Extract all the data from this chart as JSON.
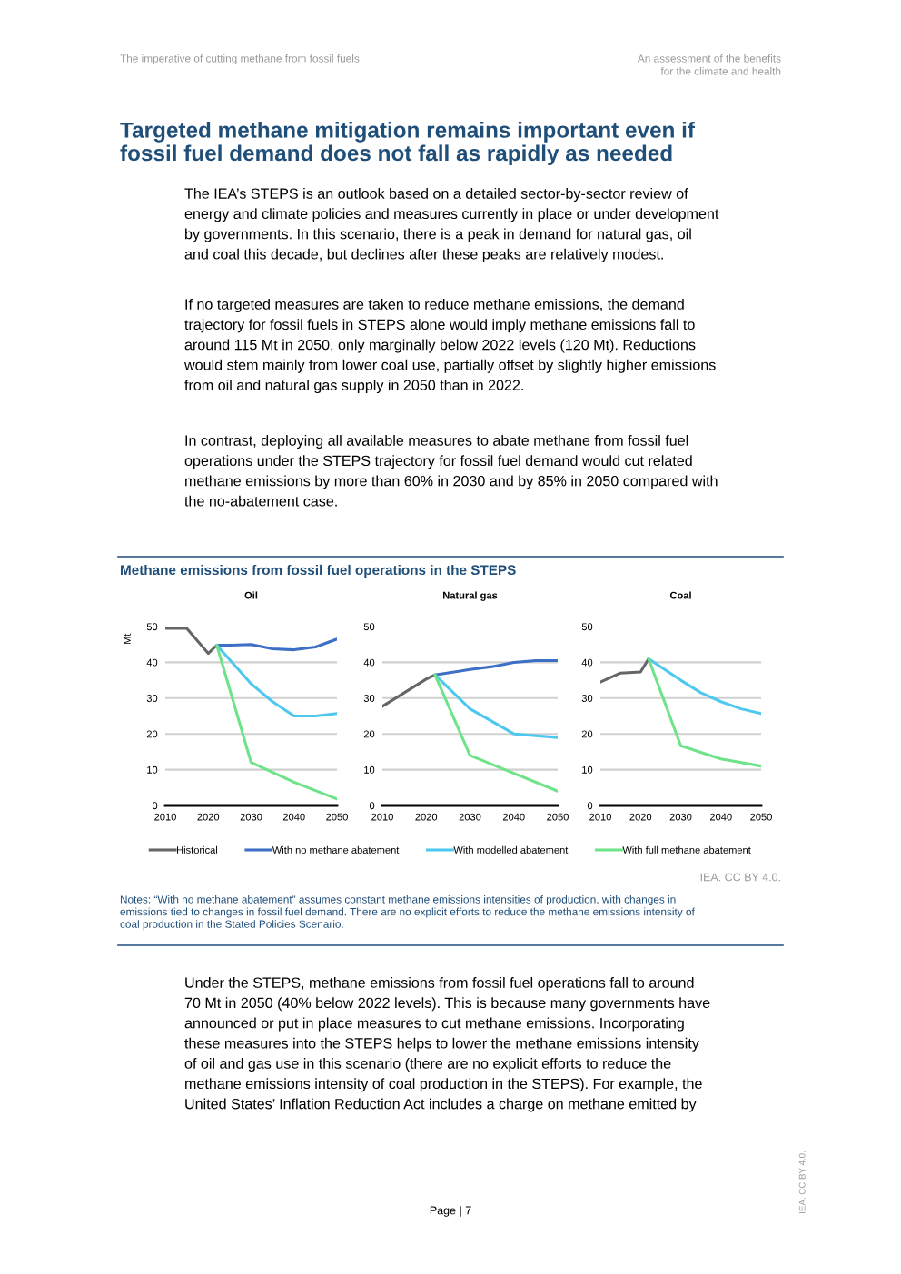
{
  "chart_data": [
    {
      "type": "other",
      "title": "Targeted methane mitigation remains important even if\nfossil fuel demand does not fall as rapidly as needed",
      "subtitle": "Methane emissions from fossil fuel operations in the STEPS",
      "annotations": [
        "The imperative of cutting methane from fossil fuels",
        "An assessment of the benefits\nfor the climate and health",
        "The IEA’s STEPS is an outlook based on a detailed sector-by-sector review of\nenergy and climate policies and measures currently in place or under development\nby governments. In this scenario, there is a peak in demand for natural gas, oil\nand coal this decade, but declines after these peaks are relatively modest.",
        "If no targeted measures are taken to reduce methane emissions, the demand\ntrajectory for fossil fuels in STEPS alone would imply methane emissions fall to\naround 115 Mt in 2050, only marginally below 2022 levels (120 Mt). Reductions\nwould stem mainly from lower coal use, partially offset by slightly higher emissions\nfrom oil and natural gas supply in 2050 than in 2022.",
        "In contrast, deploying all available measures to abate methane from fossil fuel\noperations under the STEPS trajectory for fossil fuel demand would cut related\nmethane emissions by more than 60% in 2030 and by 85% in 2050 compared with\nthe no-abatement case.",
        "IEA. CC BY 4.0.",
        "Notes: “With no methane abatement” assumes constant methane emissions intensities of production, with changes in\nemissions tied to changes in fossil fuel demand. There are no explicit efforts to reduce the methane emissions intensity of\ncoal production in the Stated Policies Scenario.",
        "Under the STEPS, methane emissions from fossil fuel operations fall to around\n70 Mt in 2050 (40% below 2022 levels). This is because many governments have\nannounced or put in place measures to cut methane emissions. Incorporating\nthese measures into the STEPS helps to lower the methane emissions intensity\nof oil and gas use in this scenario (there are no explicit efforts to reduce the\nmethane emissions intensity of coal production in the STEPS). For example, the\nUnited States’ Inflation Reduction Act includes a charge on methane emitted by",
        "Page | 7",
        "IEA. CC BY 4.0."
      ]
    },
    {
      "type": "line",
      "title": "Oil",
      "ylabel": "Mt",
      "xlim": [
        2010,
        2050
      ],
      "ylim": [
        0,
        50
      ],
      "xticks": [
        2010,
        2020,
        2030,
        2040,
        2050
      ],
      "yticks": [
        0,
        10,
        20,
        30,
        40,
        50
      ],
      "grid": "y",
      "legend": "bottom",
      "series": [
        {
          "name": "Historical",
          "color": "#666666",
          "x": [
            2010,
            2015,
            2020,
            2022
          ],
          "values": [
            49.5,
            49.5,
            42.5,
            44.8
          ]
        },
        {
          "name": "With no methane abatement",
          "color": "#3e6fc6",
          "x": [
            2022,
            2025,
            2030,
            2035,
            2040,
            2045,
            2050
          ],
          "values": [
            44.8,
            44.8,
            45,
            43.8,
            43.5,
            44.3,
            46.5
          ]
        },
        {
          "name": "With modelled abatement",
          "color": "#4fc8f0",
          "x": [
            2022,
            2030,
            2035,
            2040,
            2045,
            2050
          ],
          "values": [
            44.8,
            34,
            29,
            25,
            25,
            25.7
          ]
        },
        {
          "name": "With full methane abatement",
          "color": "#6ee38a",
          "x": [
            2022,
            2030,
            2040,
            2050
          ],
          "values": [
            44.8,
            12,
            6.5,
            1.8
          ]
        }
      ]
    },
    {
      "type": "line",
      "title": "Natural gas",
      "xlim": [
        2010,
        2050
      ],
      "ylim": [
        0,
        50
      ],
      "xticks": [
        2010,
        2020,
        2030,
        2040,
        2050
      ],
      "yticks": [
        0,
        10,
        20,
        30,
        40,
        50
      ],
      "grid": "y",
      "series": [
        {
          "color": "#666666",
          "x": [
            2010,
            2015,
            2020,
            2022
          ],
          "values": [
            27.7,
            31.5,
            35.3,
            36.5
          ]
        },
        {
          "color": "#3e6fc6",
          "x": [
            2022,
            2030,
            2035,
            2040,
            2045,
            2050
          ],
          "values": [
            36.5,
            38,
            38.8,
            40,
            40.5,
            40.5
          ]
        },
        {
          "color": "#4fc8f0",
          "x": [
            2022,
            2030,
            2040,
            2050
          ],
          "values": [
            36.5,
            27,
            20,
            19
          ]
        },
        {
          "color": "#6ee38a",
          "x": [
            2022,
            2030,
            2040,
            2050
          ],
          "values": [
            36.5,
            14,
            9,
            4
          ]
        }
      ]
    },
    {
      "type": "line",
      "title": "Coal",
      "xlim": [
        2010,
        2050
      ],
      "ylim": [
        0,
        50
      ],
      "xticks": [
        2010,
        2020,
        2030,
        2040,
        2050
      ],
      "yticks": [
        0,
        10,
        20,
        30,
        40,
        50
      ],
      "grid": "y",
      "series": [
        {
          "color": "#666666",
          "x": [
            2010,
            2015,
            2020,
            2022
          ],
          "values": [
            34.5,
            37,
            37.3,
            41
          ]
        },
        {
          "color": "#4fc8f0",
          "x": [
            2022,
            2030,
            2035,
            2040,
            2045,
            2050
          ],
          "values": [
            41,
            35,
            31.5,
            29,
            27,
            25.7
          ]
        },
        {
          "color": "#6ee38a",
          "x": [
            2022,
            2030,
            2040,
            2050
          ],
          "values": [
            41,
            16.7,
            13,
            11
          ]
        }
      ]
    }
  ]
}
